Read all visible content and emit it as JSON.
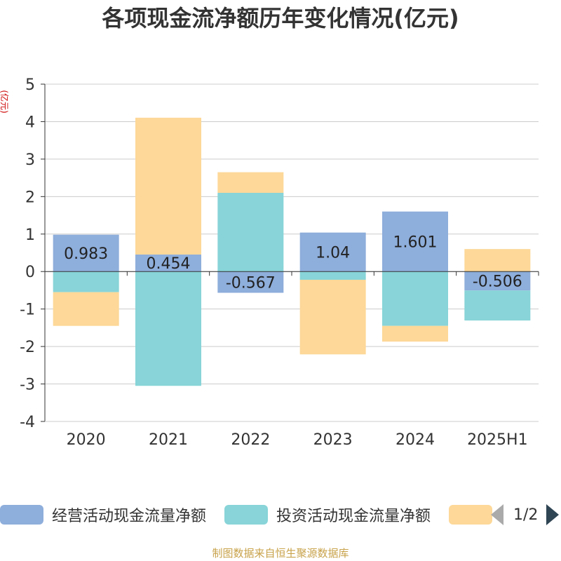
{
  "title": "各项现金流净额历年变化情况(亿元)",
  "source": "制图数据来自恒生聚源数据库",
  "legend": {
    "page_indicator": "1/2"
  },
  "colors": {
    "operating": "#8eaedb",
    "investing": "#88d4d8",
    "financing": "#fdd898"
  },
  "chart_data": {
    "type": "bar",
    "stacked": true,
    "title": "各项现金流净额历年变化情况(亿元)",
    "ylabel": "(亿元)",
    "ylim": [
      -4,
      5
    ],
    "yticks": [
      "5",
      "4",
      "3",
      "2",
      "1",
      "0",
      "-1",
      "-2",
      "-3",
      "-4"
    ],
    "grid": true,
    "legend_position": "bottom",
    "categories": [
      "2020",
      "2021",
      "2022",
      "2023",
      "2024",
      "2025H1"
    ],
    "series": [
      {
        "name": "经营活动现金流量净额",
        "values": [
          0.983,
          0.454,
          -0.567,
          1.04,
          1.601,
          -0.506
        ],
        "labels": [
          "0.983",
          "0.454",
          "-0.567",
          "1.04",
          "1.601",
          "-0.506"
        ]
      },
      {
        "name": "投资活动现金流量净额",
        "values": [
          -0.55,
          -3.05,
          2.1,
          -0.22,
          -1.45,
          -0.8
        ]
      },
      {
        "name": "",
        "values": [
          -0.9,
          3.65,
          0.55,
          -1.99,
          -0.42,
          0.6
        ]
      }
    ]
  }
}
